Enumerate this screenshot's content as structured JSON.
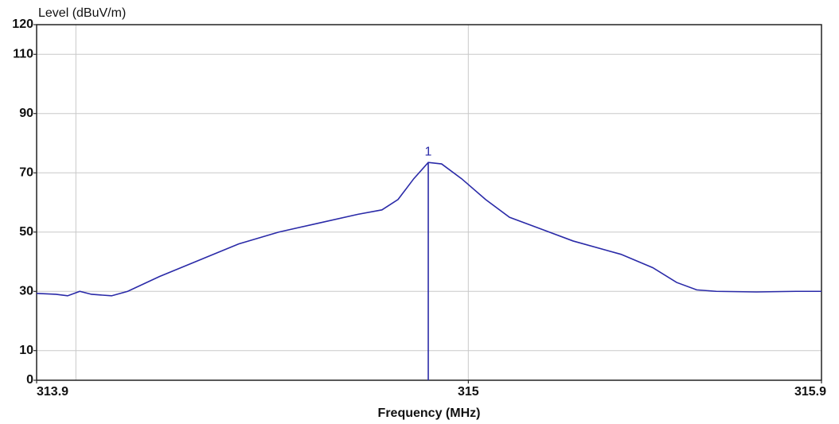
{
  "chart_data": {
    "type": "line",
    "y_label": "Level (dBuV/m)",
    "x_label": "Frequency (MHz)",
    "xlim": [
      313.9,
      315.9
    ],
    "ylim": [
      0,
      120
    ],
    "xticks": [
      313.9,
      315,
      315.9
    ],
    "yticks": [
      0,
      10,
      30,
      50,
      70,
      90,
      110,
      120
    ],
    "x_grid": [
      314,
      315
    ],
    "grid": true,
    "series": [
      {
        "name": "Level",
        "color": "#2a2aa8",
        "x": [
          313.9,
          313.949,
          313.979,
          314.01,
          314.04,
          314.091,
          314.132,
          314.213,
          314.314,
          314.415,
          314.517,
          314.618,
          314.719,
          314.78,
          314.821,
          314.861,
          314.898,
          314.932,
          314.983,
          315.044,
          315.105,
          315.186,
          315.267,
          315.389,
          315.47,
          315.531,
          315.582,
          315.632,
          315.734,
          315.835,
          315.9
        ],
        "values": [
          29.3,
          29,
          28.5,
          30,
          29,
          28.5,
          30,
          35,
          40.5,
          46,
          50,
          53,
          56,
          57.5,
          61,
          68,
          73.5,
          73,
          68,
          61,
          55,
          51,
          47,
          42.5,
          38,
          33,
          30.5,
          30,
          29.8,
          30,
          30
        ]
      }
    ],
    "markers": [
      {
        "label": "1",
        "x": 314.898,
        "value": 73.5,
        "color": "#2a2aa8"
      }
    ]
  }
}
